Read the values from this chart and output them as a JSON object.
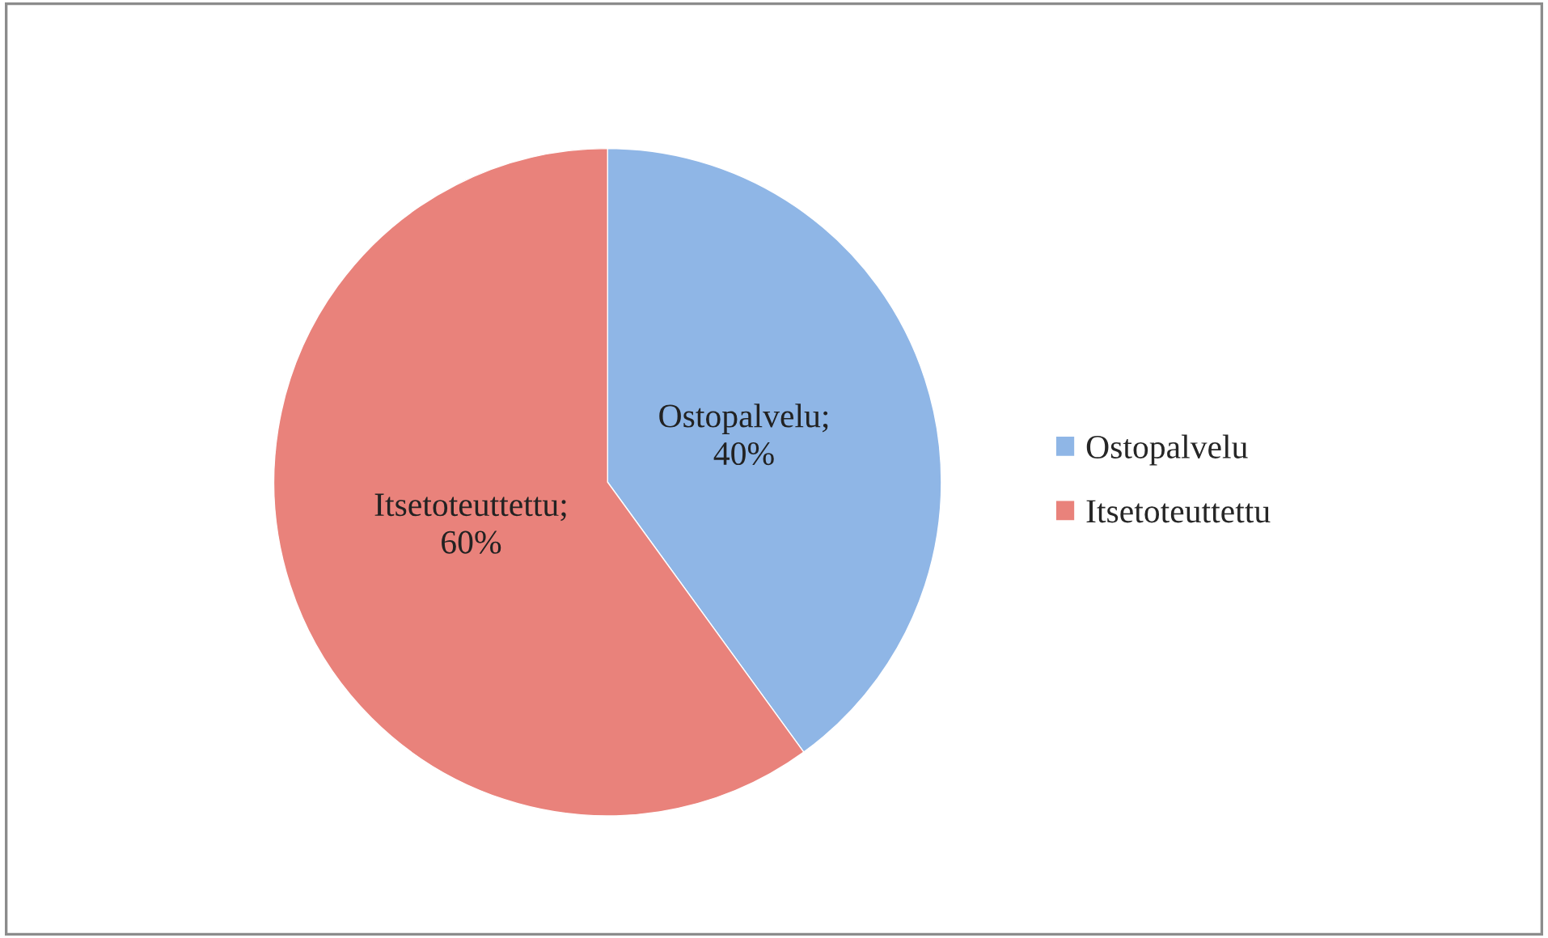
{
  "chart_data": {
    "type": "pie",
    "categories": [
      "Ostopalvelu",
      "Itsetoteuttettu"
    ],
    "values": [
      40,
      60
    ],
    "colors": [
      "#8fb6e6",
      "#e9827b"
    ],
    "value_labels": [
      "Ostopalvelu;\n40%",
      "Itsetoteuttettu;\n60%"
    ],
    "legend": "right"
  }
}
